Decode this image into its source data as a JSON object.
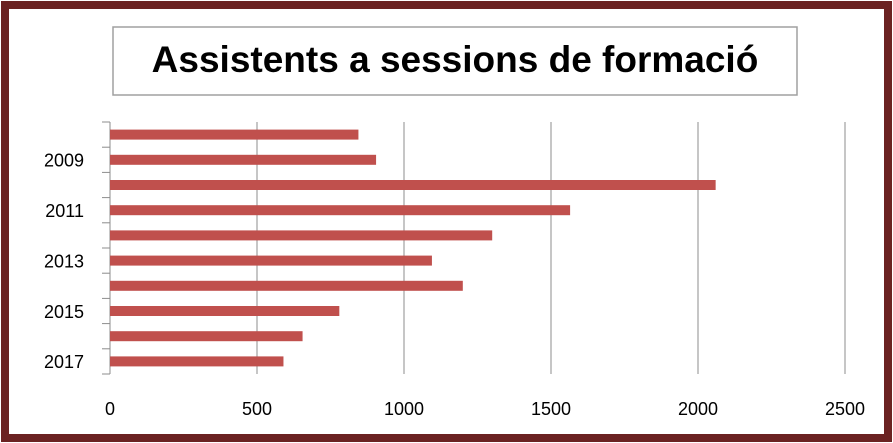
{
  "chart_data": {
    "type": "bar",
    "orientation": "horizontal",
    "title": "Assistents  a sessions de formació",
    "categories": [
      null,
      "2009",
      null,
      "2011",
      null,
      "2013",
      null,
      "2015",
      null,
      "2017"
    ],
    "values": [
      845,
      905,
      2060,
      1565,
      1300,
      1095,
      1200,
      780,
      655,
      590
    ],
    "color": "#c0504d",
    "xlim": [
      0,
      2500
    ],
    "xticks": [
      0,
      500,
      1000,
      1500,
      2000,
      2500
    ],
    "grid": true
  }
}
